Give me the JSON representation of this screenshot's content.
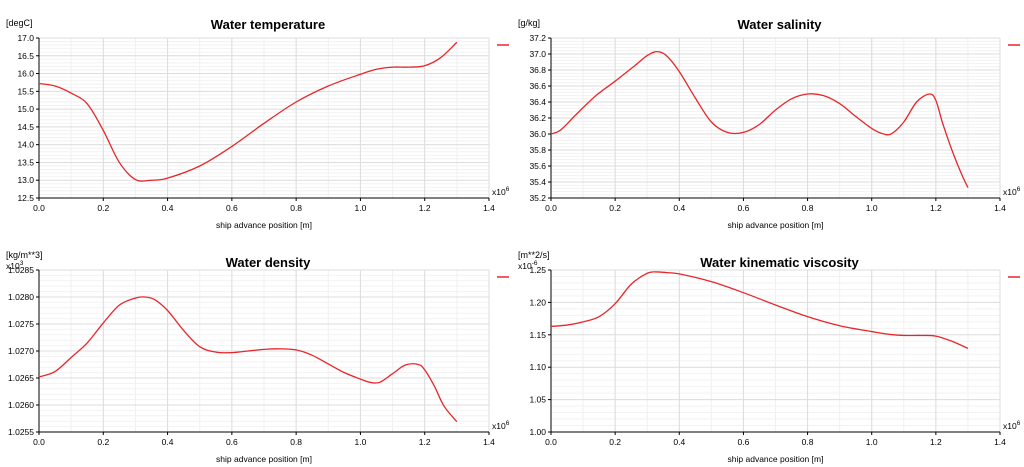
{
  "chart_data": [
    {
      "type": "line",
      "title": "Water temperature",
      "ylabel": "[degC]",
      "xlabel": "ship advance position [m]",
      "x_multiplier": "x10",
      "x_exponent": "6",
      "y_multiplier": "",
      "y_exponent": "",
      "xlim": [
        0,
        1.4
      ],
      "ylim": [
        12.5,
        17.0
      ],
      "xticks": [
        "0.0",
        "0.2",
        "0.4",
        "0.6",
        "0.8",
        "1.0",
        "1.2",
        "1.4"
      ],
      "yticks": [
        "12.5",
        "13.0",
        "13.5",
        "14.0",
        "14.5",
        "15.0",
        "15.5",
        "16.0",
        "16.5",
        "17.0"
      ],
      "grid": true,
      "legend": "top-right",
      "line_color": "#e8262a",
      "series": [
        {
          "x": [
            0.0,
            0.05,
            0.1,
            0.15,
            0.2,
            0.25,
            0.3,
            0.35,
            0.4,
            0.5,
            0.6,
            0.7,
            0.8,
            0.9,
            1.0,
            1.05,
            1.1,
            1.15,
            1.2,
            1.25,
            1.3
          ],
          "y": [
            15.72,
            15.65,
            15.45,
            15.15,
            14.4,
            13.5,
            13.02,
            13.0,
            13.06,
            13.4,
            13.95,
            14.6,
            15.2,
            15.65,
            15.98,
            16.12,
            16.18,
            16.18,
            16.22,
            16.45,
            16.88
          ]
        }
      ]
    },
    {
      "type": "line",
      "title": "Water salinity",
      "ylabel": "[g/kg]",
      "xlabel": "ship advance position [m]",
      "x_multiplier": "x10",
      "x_exponent": "6",
      "y_multiplier": "",
      "y_exponent": "",
      "xlim": [
        0,
        1.4
      ],
      "ylim": [
        35.2,
        37.2
      ],
      "xticks": [
        "0.0",
        "0.2",
        "0.4",
        "0.6",
        "0.8",
        "1.0",
        "1.2",
        "1.4"
      ],
      "yticks": [
        "35.2",
        "35.4",
        "35.6",
        "35.8",
        "36.0",
        "36.2",
        "36.4",
        "36.6",
        "36.8",
        "37.0",
        "37.2"
      ],
      "grid": true,
      "legend": "top-right",
      "line_color": "#e8262a",
      "series": [
        {
          "x": [
            0.0,
            0.03,
            0.08,
            0.14,
            0.2,
            0.26,
            0.3,
            0.33,
            0.36,
            0.4,
            0.45,
            0.5,
            0.55,
            0.6,
            0.65,
            0.7,
            0.75,
            0.8,
            0.85,
            0.9,
            0.95,
            1.0,
            1.03,
            1.06,
            1.1,
            1.14,
            1.18,
            1.2,
            1.22,
            1.25,
            1.28,
            1.3
          ],
          "y": [
            36.0,
            36.05,
            36.25,
            36.48,
            36.66,
            36.85,
            36.98,
            37.03,
            36.98,
            36.78,
            36.45,
            36.15,
            36.02,
            36.02,
            36.12,
            36.3,
            36.44,
            36.5,
            36.48,
            36.38,
            36.22,
            36.07,
            36.01,
            36.0,
            36.15,
            36.4,
            36.5,
            36.42,
            36.15,
            35.8,
            35.5,
            35.33
          ]
        }
      ]
    },
    {
      "type": "line",
      "title": "Water density",
      "ylabel": "[kg/m**3]",
      "xlabel": "ship advance position [m]",
      "x_multiplier": "x10",
      "x_exponent": "6",
      "y_multiplier": "x10",
      "y_exponent": "3",
      "xlim": [
        0,
        1.4
      ],
      "ylim": [
        1.0255,
        1.0285
      ],
      "xticks": [
        "0.0",
        "0.2",
        "0.4",
        "0.6",
        "0.8",
        "1.0",
        "1.2",
        "1.4"
      ],
      "yticks": [
        "1.0255",
        "1.0260",
        "1.0265",
        "1.0270",
        "1.0275",
        "1.0280",
        "1.0285"
      ],
      "grid": true,
      "legend": "top-right",
      "line_color": "#e8262a",
      "series": [
        {
          "x": [
            0.0,
            0.05,
            0.1,
            0.15,
            0.2,
            0.25,
            0.3,
            0.33,
            0.36,
            0.4,
            0.45,
            0.5,
            0.55,
            0.6,
            0.65,
            0.7,
            0.75,
            0.8,
            0.85,
            0.9,
            0.95,
            1.0,
            1.03,
            1.06,
            1.1,
            1.14,
            1.18,
            1.2,
            1.23,
            1.26,
            1.3
          ],
          "y": [
            1.02652,
            1.02662,
            1.02688,
            1.02715,
            1.02752,
            1.02785,
            1.02798,
            1.028,
            1.02795,
            1.02775,
            1.02738,
            1.02708,
            1.02698,
            1.02697,
            1.027,
            1.02703,
            1.02704,
            1.02702,
            1.02692,
            1.02676,
            1.0266,
            1.02648,
            1.02642,
            1.02642,
            1.02658,
            1.02674,
            1.02675,
            1.02665,
            1.02635,
            1.02598,
            1.02569
          ]
        }
      ]
    },
    {
      "type": "line",
      "title": "Water kinematic viscosity",
      "ylabel": "[m**2/s]",
      "xlabel": "ship advance position [m]",
      "x_multiplier": "x10",
      "x_exponent": "6",
      "y_multiplier": "x10",
      "y_exponent": "-6",
      "xlim": [
        0,
        1.4
      ],
      "ylim": [
        1.0,
        1.25
      ],
      "xticks": [
        "0.0",
        "0.2",
        "0.4",
        "0.6",
        "0.8",
        "1.0",
        "1.2",
        "1.4"
      ],
      "yticks": [
        "1.00",
        "1.05",
        "1.10",
        "1.15",
        "1.20",
        "1.25"
      ],
      "grid": true,
      "legend": "top-right",
      "line_color": "#e8262a",
      "series": [
        {
          "x": [
            0.0,
            0.05,
            0.1,
            0.15,
            0.2,
            0.25,
            0.3,
            0.33,
            0.36,
            0.4,
            0.5,
            0.6,
            0.7,
            0.8,
            0.9,
            1.0,
            1.05,
            1.1,
            1.15,
            1.2,
            1.25,
            1.3
          ],
          "y": [
            1.163,
            1.165,
            1.17,
            1.178,
            1.198,
            1.228,
            1.245,
            1.247,
            1.246,
            1.244,
            1.232,
            1.215,
            1.196,
            1.178,
            1.164,
            1.155,
            1.151,
            1.149,
            1.149,
            1.148,
            1.14,
            1.129
          ]
        }
      ]
    }
  ]
}
